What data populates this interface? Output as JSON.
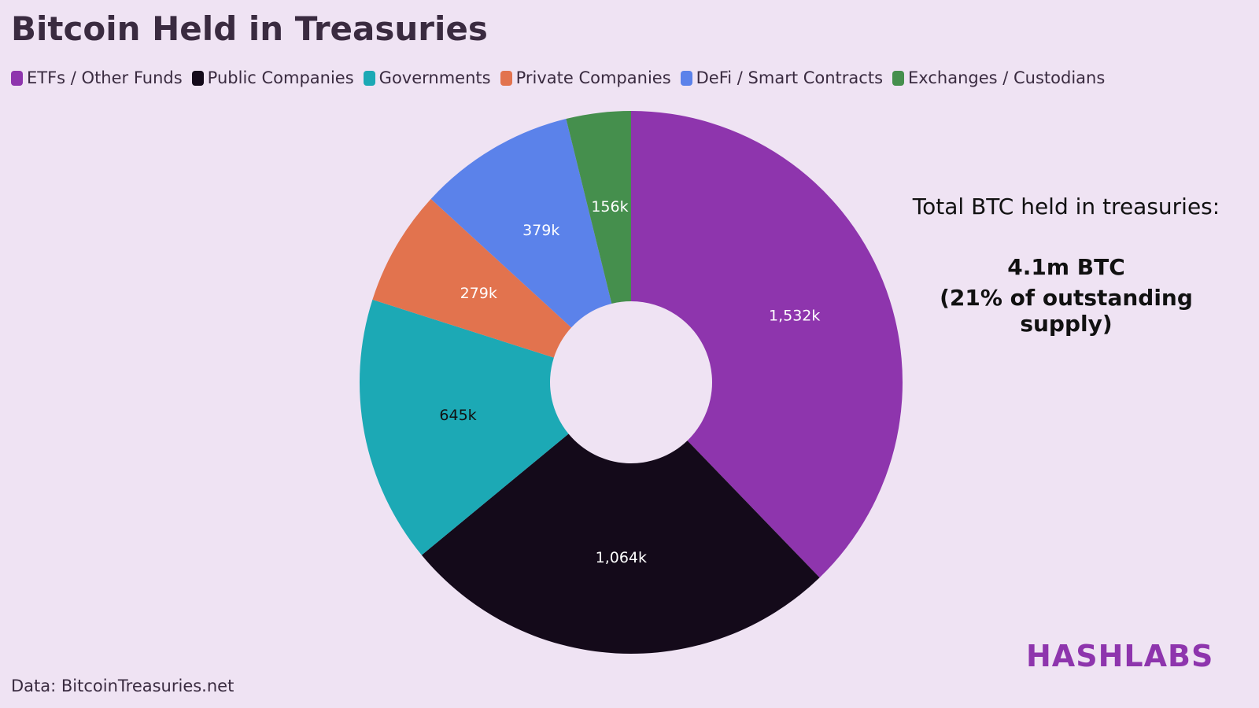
{
  "chart_data": {
    "type": "donut",
    "title": "Bitcoin Held in Treasuries",
    "categories": [
      "ETFs / Other Funds",
      "Public Companies",
      "Governments",
      "Private Companies",
      "DeFi / Smart Contracts",
      "Exchanges / Custodians"
    ],
    "values": [
      1532,
      1064,
      645,
      279,
      379,
      156
    ],
    "value_labels": [
      "1,532k",
      "1,064k",
      "645k",
      "279k",
      "379k",
      "156k"
    ],
    "colors": [
      "#8e35ad",
      "#140a1a",
      "#1ca9b5",
      "#e2734e",
      "#5b82ea",
      "#458f4d"
    ],
    "value_label_colors": [
      "#ffffff",
      "#ffffff",
      "#111111",
      "#ffffff",
      "#ffffff",
      "#ffffff"
    ],
    "annotations": [
      "Total BTC held in treasuries:",
      "4.1m BTC",
      "(21% of outstanding supply)"
    ],
    "brand": "HASHLABS",
    "source": "Data: BitcoinTreasuries.net"
  }
}
